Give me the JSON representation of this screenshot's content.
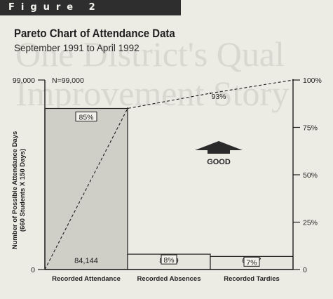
{
  "figure_label": "Figure 2",
  "background_text": [
    "One District's Qual",
    "Improvement Story"
  ],
  "chart_data": {
    "type": "bar",
    "title": "Pareto Chart of Attendance Data",
    "subtitle": "September 1991 to April 1992",
    "ylabel_line1": "Number of Possible Attendance Days",
    "ylabel_line2": "(660 Students X 150 Days)",
    "y_left_ticks": [
      "99,000",
      "0"
    ],
    "ylim": [
      0,
      99000
    ],
    "total_label": "N=99,000",
    "y_right_ticks": [
      "100%",
      "75%",
      "50%",
      "25%",
      "0"
    ],
    "categories": [
      "Recorded Attendance",
      "Recorded Absences",
      "Recorded Tardies"
    ],
    "values": [
      84144,
      8019,
      6837
    ],
    "value_labels": [
      "84,144",
      "8,019",
      "6,837"
    ],
    "percent_labels": [
      "85%",
      "8%",
      "7%"
    ],
    "cumulative_percent": [
      85,
      93,
      100
    ],
    "cumulative_label": "93%",
    "annotation": "GOOD",
    "colors": {
      "first_bar": "#cfcfc8",
      "other_bars": "#e6e5de",
      "ink": "#1e1e1e"
    }
  }
}
